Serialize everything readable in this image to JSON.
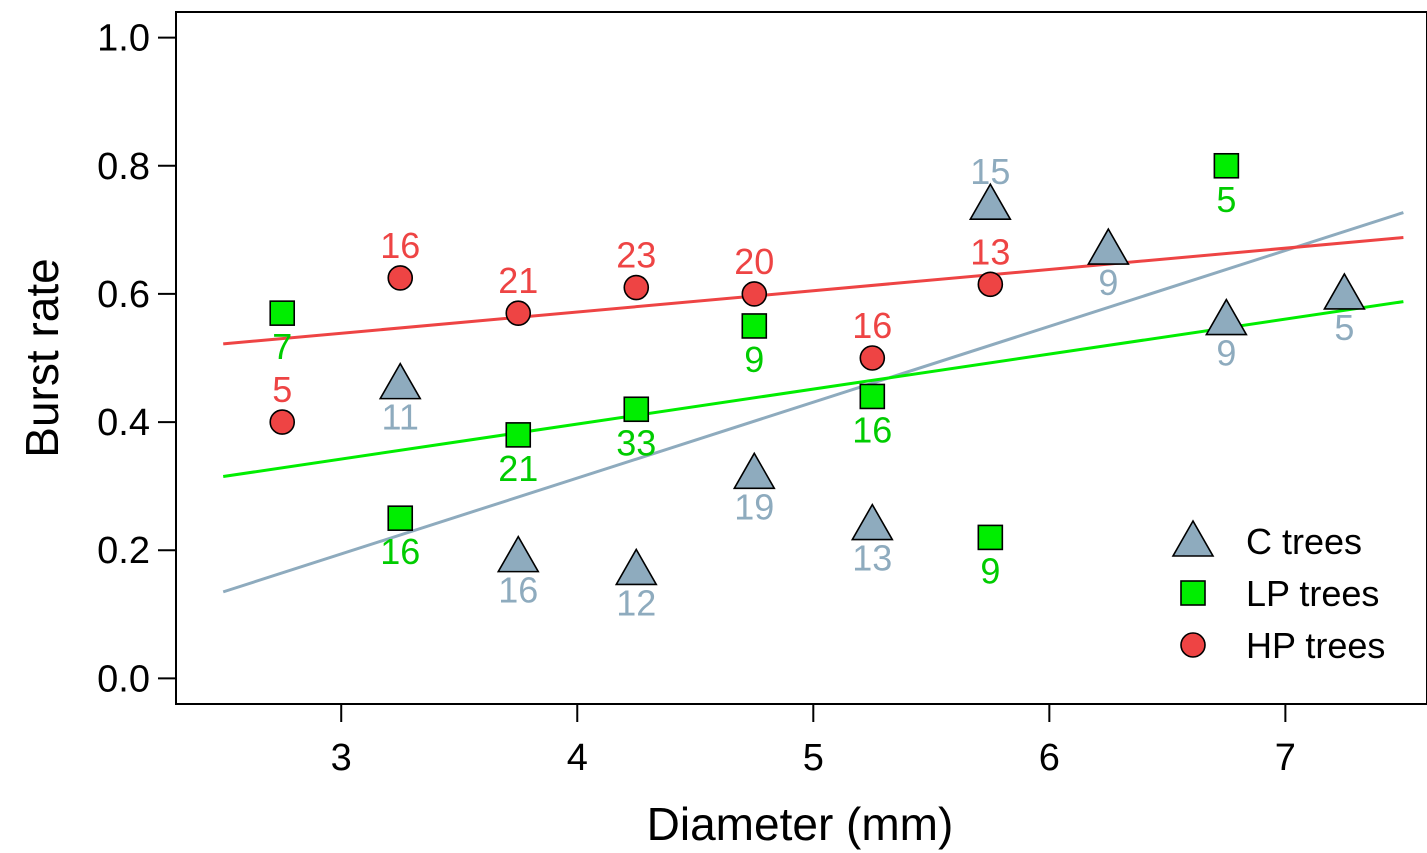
{
  "chart_data": {
    "type": "scatter",
    "title": "",
    "xlabel": "Diameter (mm)",
    "ylabel": "Burst rate",
    "xlim": [
      2.3,
      7.6
    ],
    "ylim": [
      -0.04,
      1.04
    ],
    "xticks": [
      3,
      4,
      5,
      6,
      7
    ],
    "yticks": [
      0.0,
      0.2,
      0.4,
      0.6,
      0.8,
      1.0
    ],
    "xtick_labels": [
      "3",
      "4",
      "5",
      "6",
      "7"
    ],
    "ytick_labels": [
      "0.0",
      "0.2",
      "0.4",
      "0.6",
      "0.8",
      "1.0"
    ],
    "grid": false,
    "legend_position": "bottom-right",
    "series": [
      {
        "name": "C trees",
        "marker": "triangle",
        "color": "#8eabbe",
        "label_color": "#8eabbe",
        "label_position": "below",
        "points": [
          {
            "x": 3.25,
            "y": 0.46,
            "n": "11"
          },
          {
            "x": 3.75,
            "y": 0.19,
            "n": "16"
          },
          {
            "x": 4.25,
            "y": 0.17,
            "n": "12"
          },
          {
            "x": 4.75,
            "y": 0.32,
            "n": "19"
          },
          {
            "x": 5.25,
            "y": 0.24,
            "n": "13"
          },
          {
            "x": 5.75,
            "y": 0.74,
            "n": "15",
            "label_position": "above"
          },
          {
            "x": 6.25,
            "y": 0.67,
            "n": "9"
          },
          {
            "x": 6.75,
            "y": 0.56,
            "n": "9"
          },
          {
            "x": 7.25,
            "y": 0.6,
            "n": "5"
          }
        ],
        "fit": [
          [
            2.5,
            0.135
          ],
          [
            7.5,
            0.727
          ]
        ]
      },
      {
        "name": "LP trees",
        "marker": "square",
        "color": "#00ee00",
        "label_color": "#00cc00",
        "label_position": "below",
        "points": [
          {
            "x": 2.75,
            "y": 0.57,
            "n": "7"
          },
          {
            "x": 3.25,
            "y": 0.25,
            "n": "16"
          },
          {
            "x": 3.75,
            "y": 0.38,
            "n": "21"
          },
          {
            "x": 4.25,
            "y": 0.42,
            "n": "33"
          },
          {
            "x": 4.75,
            "y": 0.55,
            "n": "9"
          },
          {
            "x": 5.25,
            "y": 0.44,
            "n": "16"
          },
          {
            "x": 5.75,
            "y": 0.22,
            "n": "9"
          },
          {
            "x": 6.75,
            "y": 0.8,
            "n": "5"
          }
        ],
        "fit": [
          [
            2.5,
            0.315
          ],
          [
            7.5,
            0.588
          ]
        ]
      },
      {
        "name": "HP trees",
        "marker": "circle",
        "color": "#ee4444",
        "label_color": "#ee4444",
        "label_position": "above",
        "points": [
          {
            "x": 2.75,
            "y": 0.4,
            "n": "5"
          },
          {
            "x": 3.25,
            "y": 0.625,
            "n": "16"
          },
          {
            "x": 3.75,
            "y": 0.57,
            "n": "21"
          },
          {
            "x": 4.25,
            "y": 0.61,
            "n": "23"
          },
          {
            "x": 4.75,
            "y": 0.6,
            "n": "20"
          },
          {
            "x": 5.25,
            "y": 0.5,
            "n": "16"
          },
          {
            "x": 5.75,
            "y": 0.615,
            "n": "13"
          }
        ],
        "fit": [
          [
            2.5,
            0.522
          ],
          [
            7.5,
            0.688
          ]
        ]
      }
    ]
  }
}
